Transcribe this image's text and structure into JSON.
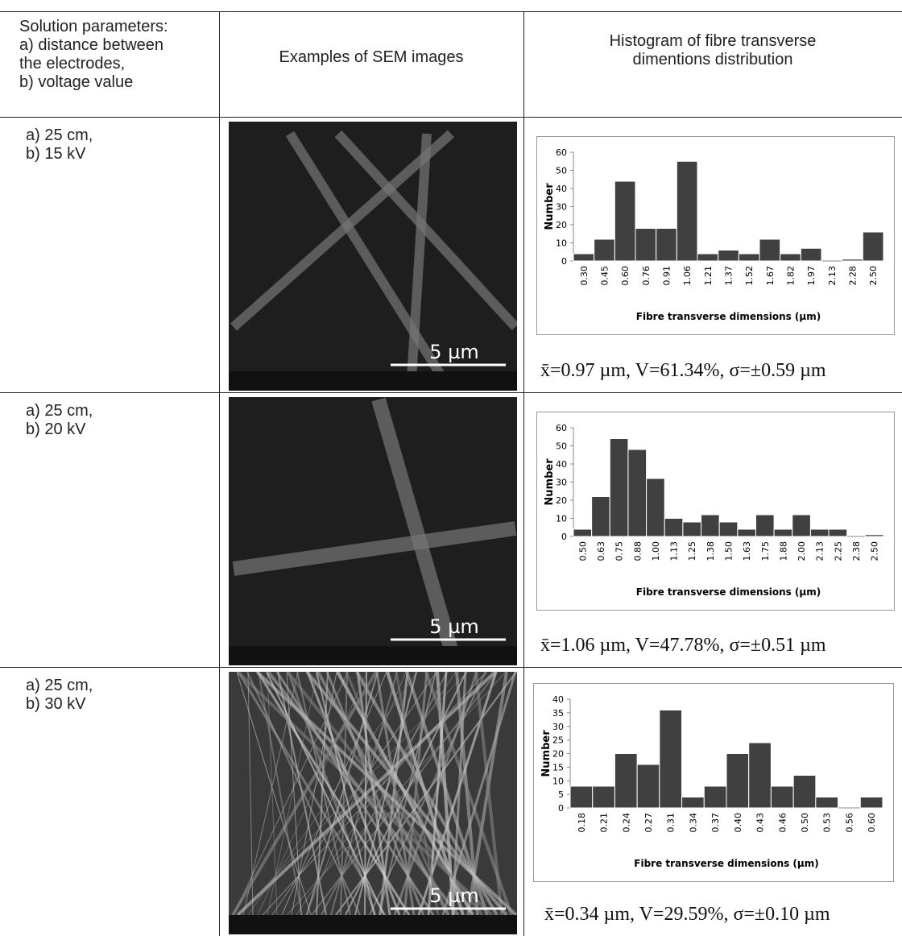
{
  "table": {
    "header": [
      [
        "Solution parameters:",
        "a) distance between",
        "the electrodes,",
        "b) voltage value"
      ],
      "Examples of SEM images",
      [
        "Histogram of fibre transverse",
        "dimentions distribution"
      ]
    ],
    "rows": [
      {
        "params": [
          "a) 25 cm,",
          "b) 15 kV"
        ],
        "scale_bar": "5 µm",
        "stats": "x̄=0.97 µm, V=61.34%, σ=±0.59 µm"
      },
      {
        "params": [
          "a) 25 cm,",
          "b) 20 kV"
        ],
        "scale_bar": "5 µm",
        "stats": "x̄=1.06 µm, V=47.78%, σ=±0.51 µm"
      },
      {
        "params": [
          "a) 25 cm,",
          "b) 30 kV"
        ],
        "scale_bar": "5 µm",
        "stats": "x̄=0.34 µm, V=29.59%, σ=±0.10 µm"
      }
    ]
  },
  "chart_data": [
    {
      "type": "bar",
      "xlabel": "Fibre transverse dimensions (µm)",
      "ylabel": "Number",
      "color": "#404040",
      "categories": [
        "0.30",
        "0.45",
        "0.60",
        "0.76",
        "0.91",
        "1.06",
        "1.21",
        "1.37",
        "1.52",
        "1.67",
        "1.82",
        "1.97",
        "2.13",
        "2.28",
        "2.50"
      ],
      "values": [
        4,
        12,
        44,
        18,
        18,
        55,
        4,
        6,
        4,
        12,
        4,
        7,
        0,
        1,
        16
      ],
      "ylim": [
        0,
        60
      ],
      "yticks": [
        0,
        10,
        20,
        30,
        40,
        50,
        60
      ]
    },
    {
      "type": "bar",
      "xlabel": "Fibre transverse dimensions (µm)",
      "ylabel": "Number",
      "color": "#404040",
      "categories": [
        "0.50",
        "0.63",
        "0.75",
        "0.88",
        "1.00",
        "1.13",
        "1.25",
        "1.38",
        "1.50",
        "1.63",
        "1.75",
        "1.88",
        "2.00",
        "2.13",
        "2.25",
        "2.38",
        "2.50"
      ],
      "values": [
        4,
        22,
        54,
        48,
        32,
        10,
        8,
        12,
        8,
        4,
        12,
        4,
        12,
        4,
        4,
        0,
        1
      ],
      "ylim": [
        0,
        60
      ],
      "yticks": [
        0,
        10,
        20,
        30,
        40,
        50,
        60
      ]
    },
    {
      "type": "bar",
      "xlabel": "Fibre transverse dimensions (µm)",
      "ylabel": "Number",
      "color": "#404040",
      "categories": [
        "0.18",
        "0.21",
        "0.24",
        "0.27",
        "0.31",
        "0.34",
        "0.37",
        "0.40",
        "0.43",
        "0.46",
        "0.50",
        "0.53",
        "0.56",
        "0.60"
      ],
      "values": [
        8,
        8,
        20,
        16,
        36,
        4,
        8,
        20,
        24,
        8,
        12,
        4,
        0,
        4
      ],
      "ylim": [
        0,
        40
      ],
      "yticks": [
        0,
        5,
        10,
        15,
        20,
        25,
        30,
        35,
        40
      ]
    }
  ]
}
